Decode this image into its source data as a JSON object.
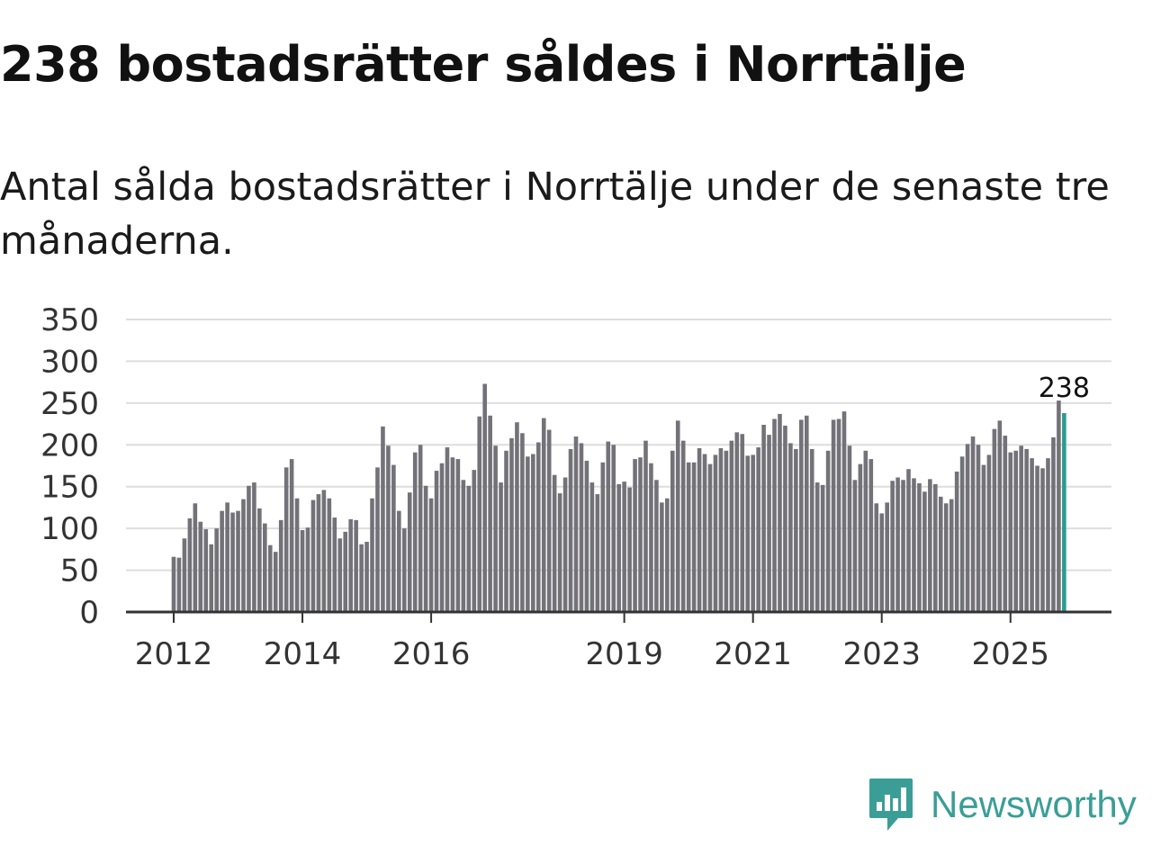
{
  "header": {
    "title": "238 bostadsrätter såldes i Norrtälje",
    "subtitle": "Antal sålda bostadsrätter i Norrtälje under de senaste tre månaderna."
  },
  "brand": {
    "name": "Newsworthy",
    "icon": "newsworthy-logo-icon",
    "color": "#3a9e96"
  },
  "chart_data": {
    "type": "bar",
    "title": "238 bostadsrätter såldes i Norrtälje",
    "xlabel": "",
    "ylabel": "",
    "ylim": [
      0,
      350
    ],
    "yticks": [
      0,
      50,
      100,
      150,
      200,
      250,
      300,
      350
    ],
    "xticks": [
      {
        "label": "2012",
        "index": 0
      },
      {
        "label": "2014",
        "index": 24
      },
      {
        "label": "2016",
        "index": 48
      },
      {
        "label": "2019",
        "index": 84
      },
      {
        "label": "2021",
        "index": 108
      },
      {
        "label": "2023",
        "index": 132
      },
      {
        "label": "2025",
        "index": 156
      }
    ],
    "colors": {
      "bar": "#737278",
      "highlight": "#2a9d8f",
      "grid": "#dddddd",
      "axis": "#333333"
    },
    "highlight_label": "238",
    "highlight_index": 166,
    "values": [
      66,
      65,
      88,
      112,
      130,
      108,
      99,
      81,
      100,
      121,
      131,
      119,
      121,
      135,
      151,
      155,
      124,
      106,
      80,
      72,
      110,
      173,
      183,
      136,
      98,
      101,
      134,
      141,
      146,
      136,
      113,
      88,
      96,
      111,
      110,
      81,
      84,
      136,
      173,
      222,
      199,
      176,
      121,
      100,
      143,
      191,
      200,
      151,
      136,
      169,
      178,
      197,
      185,
      183,
      158,
      151,
      170,
      234,
      273,
      235,
      199,
      155,
      193,
      208,
      227,
      214,
      186,
      189,
      203,
      232,
      218,
      164,
      142,
      161,
      195,
      210,
      202,
      181,
      155,
      141,
      179,
      204,
      200,
      153,
      156,
      149,
      183,
      185,
      205,
      178,
      158,
      131,
      136,
      193,
      229,
      205,
      179,
      179,
      196,
      189,
      177,
      188,
      196,
      193,
      205,
      215,
      213,
      187,
      188,
      197,
      224,
      212,
      231,
      237,
      223,
      202,
      195,
      230,
      235,
      195,
      155,
      152,
      193,
      230,
      231,
      240,
      199,
      158,
      177,
      193,
      183,
      130,
      118,
      131,
      157,
      161,
      158,
      171,
      160,
      154,
      144,
      159,
      153,
      138,
      130,
      135,
      168,
      186,
      201,
      210,
      200,
      176,
      188,
      219,
      229,
      211,
      191,
      193,
      199,
      195,
      184,
      175,
      172,
      184,
      209,
      253,
      238
    ]
  }
}
